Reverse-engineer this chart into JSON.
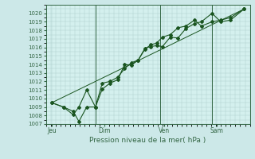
{
  "title": "",
  "xlabel": "Pression niveau de la mer( hPa )",
  "background_color": "#cce8e8",
  "plot_bg_color": "#d4f0ee",
  "grid_color": "#aacccc",
  "line_color": "#1a5520",
  "vline_color": "#336644",
  "spine_color": "#336644",
  "ylim": [
    1007,
    1021
  ],
  "xlim": [
    0,
    10.5
  ],
  "yticks": [
    1007,
    1008,
    1009,
    1010,
    1011,
    1012,
    1013,
    1014,
    1015,
    1016,
    1017,
    1018,
    1019,
    1020
  ],
  "xtick_labels": [
    "Jeu",
    "Dim",
    "Ven",
    "Sam"
  ],
  "xtick_positions": [
    0.3,
    3.0,
    6.1,
    8.8
  ],
  "vlines": [
    2.55,
    5.9,
    8.55
  ],
  "line1_x": [
    0.3,
    0.9,
    1.4,
    1.7,
    2.1,
    2.55,
    2.9,
    3.3,
    3.7,
    4.05,
    4.4,
    4.75,
    5.1,
    5.4,
    5.7,
    6.0,
    6.4,
    6.8,
    7.2,
    7.65,
    8.0,
    8.55,
    9.0,
    9.5,
    10.2
  ],
  "line1_y": [
    1009.5,
    1009.0,
    1008.1,
    1009.0,
    1011.0,
    1009.0,
    1011.1,
    1011.8,
    1012.2,
    1014.0,
    1013.9,
    1014.5,
    1015.9,
    1016.1,
    1016.2,
    1016.1,
    1017.2,
    1017.1,
    1018.2,
    1018.8,
    1019.0,
    1020.0,
    1019.0,
    1019.2,
    1020.5
  ],
  "line2_x": [
    0.3,
    0.9,
    1.4,
    1.7,
    2.1,
    2.55,
    2.9,
    3.3,
    3.7,
    4.05,
    4.4,
    4.75,
    5.1,
    5.4,
    5.7,
    6.0,
    6.4,
    6.8,
    7.2,
    7.65,
    8.0,
    8.55,
    9.0,
    9.5,
    10.2
  ],
  "line2_y": [
    1009.5,
    1009.0,
    1008.5,
    1007.3,
    1009.0,
    1009.0,
    1011.8,
    1012.0,
    1012.5,
    1013.5,
    1014.2,
    1014.5,
    1015.8,
    1016.3,
    1016.5,
    1017.2,
    1017.5,
    1018.3,
    1018.5,
    1019.2,
    1018.5,
    1019.0,
    1019.2,
    1019.5,
    1020.5
  ],
  "line3_x": [
    0.3,
    10.2
  ],
  "line3_y": [
    1009.5,
    1020.5
  ],
  "marker": "D",
  "markersize": 2.0,
  "linewidth": 0.8
}
